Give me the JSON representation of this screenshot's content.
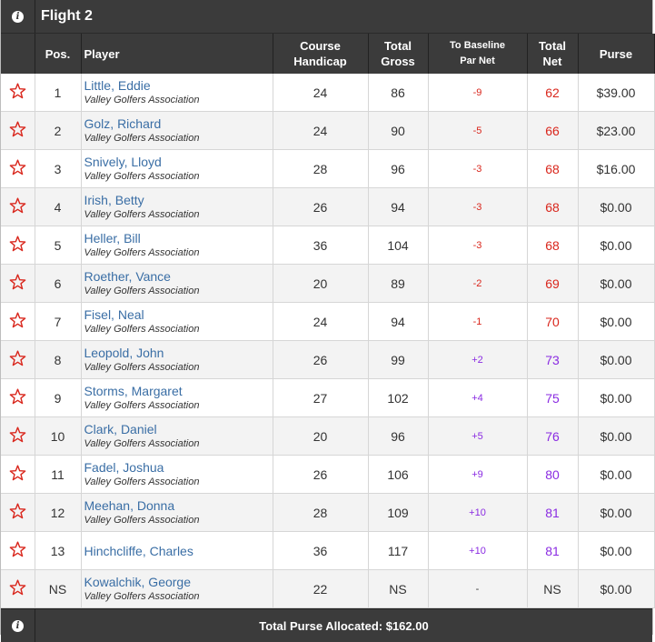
{
  "flight": {
    "title": "Flight 2"
  },
  "columns": {
    "pos": "Pos.",
    "player": "Player",
    "course_handicap_1": "Course",
    "course_handicap_2": "Handicap",
    "total_gross_1": "Total",
    "total_gross_2": "Gross",
    "to_baseline_1": "To Baseline",
    "to_baseline_2": "Par Net",
    "total_net_1": "Total",
    "total_net_2": "Net",
    "purse": "Purse"
  },
  "colors": {
    "negative": "#d9261c",
    "positive": "#8a2be2",
    "link": "#3a6ea5",
    "header_bg": "#3b3b3b"
  },
  "rows": [
    {
      "pos": "1",
      "name": "Little, Eddie",
      "assoc": "Valley Golfers Association",
      "handicap": "24",
      "gross": "86",
      "baseline": "-9",
      "net": "62",
      "purse": "$39.00"
    },
    {
      "pos": "2",
      "name": "Golz, Richard",
      "assoc": "Valley Golfers Association",
      "handicap": "24",
      "gross": "90",
      "baseline": "-5",
      "net": "66",
      "purse": "$23.00"
    },
    {
      "pos": "3",
      "name": "Snively, Lloyd",
      "assoc": "Valley Golfers Association",
      "handicap": "28",
      "gross": "96",
      "baseline": "-3",
      "net": "68",
      "purse": "$16.00"
    },
    {
      "pos": "4",
      "name": "Irish, Betty",
      "assoc": "Valley Golfers Association",
      "handicap": "26",
      "gross": "94",
      "baseline": "-3",
      "net": "68",
      "purse": "$0.00"
    },
    {
      "pos": "5",
      "name": "Heller, Bill",
      "assoc": "Valley Golfers Association",
      "handicap": "36",
      "gross": "104",
      "baseline": "-3",
      "net": "68",
      "purse": "$0.00"
    },
    {
      "pos": "6",
      "name": "Roether, Vance",
      "assoc": "Valley Golfers Association",
      "handicap": "20",
      "gross": "89",
      "baseline": "-2",
      "net": "69",
      "purse": "$0.00"
    },
    {
      "pos": "7",
      "name": "Fisel, Neal",
      "assoc": "Valley Golfers Association",
      "handicap": "24",
      "gross": "94",
      "baseline": "-1",
      "net": "70",
      "purse": "$0.00"
    },
    {
      "pos": "8",
      "name": "Leopold, John",
      "assoc": "Valley Golfers Association",
      "handicap": "26",
      "gross": "99",
      "baseline": "+2",
      "net": "73",
      "purse": "$0.00"
    },
    {
      "pos": "9",
      "name": "Storms, Margaret",
      "assoc": "Valley Golfers Association",
      "handicap": "27",
      "gross": "102",
      "baseline": "+4",
      "net": "75",
      "purse": "$0.00"
    },
    {
      "pos": "10",
      "name": "Clark, Daniel",
      "assoc": "Valley Golfers Association",
      "handicap": "20",
      "gross": "96",
      "baseline": "+5",
      "net": "76",
      "purse": "$0.00"
    },
    {
      "pos": "11",
      "name": "Fadel, Joshua",
      "assoc": "Valley Golfers Association",
      "handicap": "26",
      "gross": "106",
      "baseline": "+9",
      "net": "80",
      "purse": "$0.00"
    },
    {
      "pos": "12",
      "name": "Meehan, Donna",
      "assoc": "Valley Golfers Association",
      "handicap": "28",
      "gross": "109",
      "baseline": "+10",
      "net": "81",
      "purse": "$0.00"
    },
    {
      "pos": "13",
      "name": "Hinchcliffe, Charles",
      "assoc": "",
      "handicap": "36",
      "gross": "117",
      "baseline": "+10",
      "net": "81",
      "purse": "$0.00"
    },
    {
      "pos": "NS",
      "name": "Kowalchik, George",
      "assoc": "Valley Golfers Association",
      "handicap": "22",
      "gross": "NS",
      "baseline": "-",
      "net": "NS",
      "purse": "$0.00"
    }
  ],
  "footer": {
    "total_purse": "Total Purse Allocated: $162.00"
  }
}
